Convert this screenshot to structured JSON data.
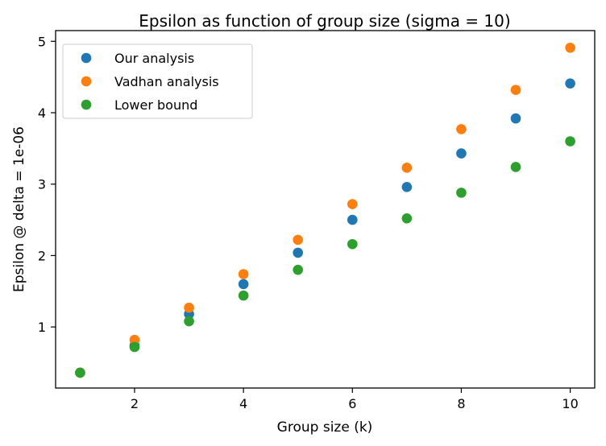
{
  "chart_data": {
    "type": "scatter",
    "title": "Epsilon as function of group size (sigma = 10)",
    "xlabel": "Group size (k)",
    "ylabel": "Epsilon @ delta = 1e-06",
    "xlim": [
      0.55,
      10.45
    ],
    "ylim": [
      0.145,
      5.15
    ],
    "xticks": [
      2,
      4,
      6,
      8,
      10
    ],
    "yticks": [
      1,
      2,
      3,
      4,
      5
    ],
    "grid": false,
    "legend_position": "upper-left",
    "series": [
      {
        "name": "Our analysis",
        "color": "#1f77b4",
        "x": [
          1,
          2,
          3,
          4,
          5,
          6,
          7,
          8,
          9,
          10
        ],
        "y": [
          0.36,
          0.74,
          1.18,
          1.6,
          2.04,
          2.5,
          2.96,
          3.43,
          3.92,
          4.41
        ]
      },
      {
        "name": "Vadhan analysis",
        "color": "#ff7f0e",
        "x": [
          1,
          2,
          3,
          4,
          5,
          6,
          7,
          8,
          9,
          10
        ],
        "y": [
          0.36,
          0.82,
          1.27,
          1.74,
          2.22,
          2.72,
          3.23,
          3.77,
          4.32,
          4.91
        ]
      },
      {
        "name": "Lower bound",
        "color": "#2ca02c",
        "x": [
          1,
          2,
          3,
          4,
          5,
          6,
          7,
          8,
          9,
          10
        ],
        "y": [
          0.36,
          0.72,
          1.08,
          1.44,
          1.8,
          2.16,
          2.52,
          2.88,
          3.24,
          3.6
        ]
      }
    ]
  }
}
